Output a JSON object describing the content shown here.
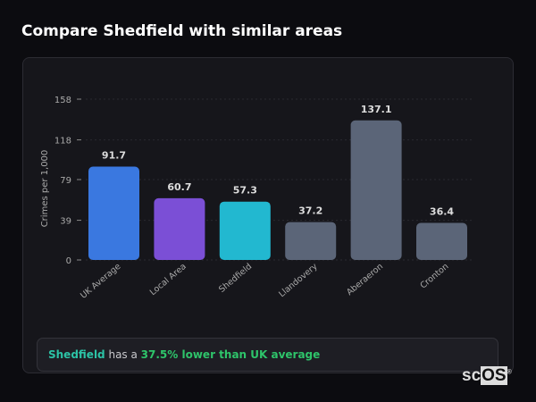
{
  "title": "Compare Shedfield with similar areas",
  "chart_data": {
    "type": "bar",
    "title": "",
    "xlabel": "",
    "ylabel": "Crimes per 1,000",
    "ylim": [
      0,
      158
    ],
    "yticks": [
      0,
      39,
      79,
      118,
      158
    ],
    "grid": true,
    "categories": [
      "UK Average",
      "Local Area",
      "Shedfield",
      "Llandovery",
      "Aberaeron",
      "Cronton"
    ],
    "values": [
      91.7,
      60.7,
      57.3,
      37.2,
      137.1,
      36.4
    ],
    "value_labels": [
      "91.7",
      "60.7",
      "57.3",
      "37.2",
      "137.1",
      "36.4"
    ],
    "colors": [
      "#3a78e0",
      "#7b4fd6",
      "#22b8d0",
      "#5b6578",
      "#5b6578",
      "#5b6578"
    ]
  },
  "summary": {
    "area": "Shedfield",
    "middle": " has a ",
    "comparison": "37.5% lower than UK average"
  },
  "logo": {
    "text_a": "sc",
    "text_b": "OS",
    "mark": "®"
  }
}
